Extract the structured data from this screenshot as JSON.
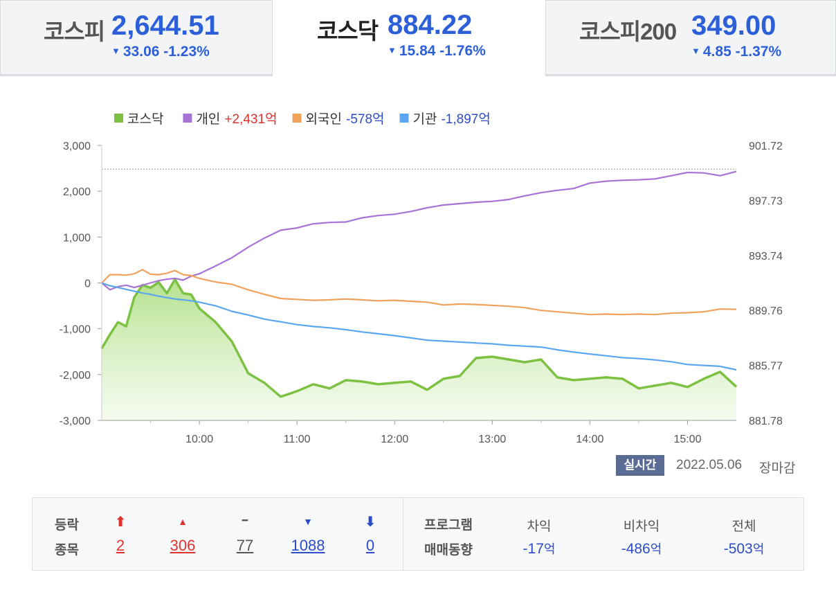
{
  "indices": [
    {
      "name": "코스피",
      "value": "2,644.51",
      "change": "33.06 -1.23%",
      "active": false
    },
    {
      "name": "코스닥",
      "value": "884.22",
      "change": "15.84 -1.76%",
      "active": true
    },
    {
      "name": "코스피200",
      "value": "349.00",
      "change": "4.85 -1.37%",
      "active": false
    }
  ],
  "down_symbol": "▼",
  "legend": [
    {
      "label": "코스닥",
      "value": "",
      "color": "#7cc142",
      "value_color": ""
    },
    {
      "label": "개인",
      "value": "+2,431억",
      "color": "#a773d6",
      "value_color": "#e0322f"
    },
    {
      "label": "외국인",
      "value": "-578억",
      "color": "#f0a15a",
      "value_color": "#2c4cc8"
    },
    {
      "label": "기관",
      "value": "-1,897억",
      "color": "#5aa6ef",
      "value_color": "#2c4cc8"
    }
  ],
  "chart_data": {
    "type": "line",
    "x_labels": [
      "10:00",
      "11:00",
      "12:00",
      "13:00",
      "14:00",
      "15:00"
    ],
    "x_range": [
      "09:00",
      "15:30"
    ],
    "y_left": {
      "ticks": [
        "3,000",
        "2,000",
        "1,000",
        "0",
        "-1,000",
        "-2,000",
        "-3,000"
      ],
      "range": [
        -3000,
        3000
      ]
    },
    "y_right": {
      "ticks": [
        "901.72",
        "897.73",
        "893.74",
        "889.76",
        "885.77",
        "881.78"
      ],
      "range": [
        881.78,
        901.72
      ]
    },
    "reference_line": 900.0,
    "time": [
      "09:00",
      "09:05",
      "09:10",
      "09:15",
      "09:20",
      "09:25",
      "09:30",
      "09:35",
      "09:40",
      "09:45",
      "09:50",
      "09:55",
      "10:00",
      "10:10",
      "10:20",
      "10:30",
      "10:40",
      "10:50",
      "11:00",
      "11:10",
      "11:20",
      "11:30",
      "11:40",
      "11:50",
      "12:00",
      "12:10",
      "12:20",
      "12:30",
      "12:40",
      "12:50",
      "13:00",
      "13:10",
      "13:20",
      "13:30",
      "13:40",
      "13:50",
      "14:00",
      "14:10",
      "14:20",
      "14:30",
      "14:40",
      "14:50",
      "15:00",
      "15:10",
      "15:20",
      "15:30"
    ],
    "series": [
      {
        "name": "코스닥",
        "axis": "right",
        "color": "#7cc142",
        "fill": true,
        "values": [
          887.0,
          888.0,
          888.9,
          888.6,
          890.7,
          891.6,
          891.4,
          891.8,
          891.0,
          892.0,
          891.0,
          890.9,
          889.9,
          888.9,
          887.5,
          885.2,
          884.5,
          883.5,
          883.9,
          884.4,
          884.1,
          884.7,
          884.6,
          884.4,
          884.5,
          884.6,
          884.0,
          884.8,
          885.0,
          886.3,
          886.4,
          886.2,
          886.0,
          886.2,
          884.9,
          884.7,
          884.8,
          884.9,
          884.8,
          884.1,
          884.3,
          884.5,
          884.2,
          884.8,
          885.3,
          884.22
        ]
      },
      {
        "name": "개인",
        "axis": "left",
        "color": "#a773d6",
        "values": [
          0,
          -150,
          -80,
          -50,
          -100,
          -50,
          0,
          50,
          80,
          100,
          60,
          150,
          200,
          370,
          550,
          780,
          980,
          1150,
          1200,
          1290,
          1320,
          1330,
          1420,
          1470,
          1500,
          1560,
          1640,
          1700,
          1730,
          1760,
          1780,
          1820,
          1900,
          1970,
          2020,
          2060,
          2180,
          2220,
          2240,
          2250,
          2270,
          2340,
          2410,
          2400,
          2340,
          2431
        ]
      },
      {
        "name": "외국인",
        "axis": "left",
        "color": "#f0a15a",
        "values": [
          0,
          180,
          180,
          170,
          200,
          290,
          190,
          180,
          210,
          270,
          180,
          160,
          100,
          20,
          -30,
          -150,
          -250,
          -340,
          -360,
          -380,
          -370,
          -350,
          -370,
          -390,
          -380,
          -400,
          -420,
          -480,
          -460,
          -470,
          -490,
          -510,
          -540,
          -600,
          -630,
          -660,
          -690,
          -680,
          -690,
          -680,
          -690,
          -660,
          -650,
          -630,
          -570,
          -578
        ]
      },
      {
        "name": "기관",
        "axis": "left",
        "color": "#5aa6ef",
        "values": [
          0,
          -60,
          -100,
          -140,
          -180,
          -220,
          -250,
          -290,
          -320,
          -350,
          -370,
          -390,
          -420,
          -500,
          -620,
          -700,
          -790,
          -850,
          -910,
          -950,
          -980,
          -1020,
          -1070,
          -1110,
          -1150,
          -1200,
          -1250,
          -1270,
          -1290,
          -1310,
          -1330,
          -1360,
          -1380,
          -1400,
          -1460,
          -1510,
          -1550,
          -1590,
          -1630,
          -1650,
          -1680,
          -1720,
          -1780,
          -1800,
          -1820,
          -1897
        ]
      }
    ]
  },
  "realtime": {
    "badge": "실시간",
    "date": "2022.05.06",
    "status": "장마감"
  },
  "breadth": {
    "label_line1": "등락",
    "label_line2": "종목",
    "items": [
      {
        "icon": "⬆",
        "count": "2",
        "color": "#e0322f",
        "name": "upper-limit"
      },
      {
        "icon": "▲",
        "count": "306",
        "color": "#e0322f",
        "name": "up"
      },
      {
        "icon": "━",
        "count": "77",
        "color": "#555555",
        "name": "unchanged"
      },
      {
        "icon": "▼",
        "count": "1088",
        "color": "#2c4cc8",
        "name": "down"
      },
      {
        "icon": "⬇",
        "count": "0",
        "color": "#2c4cc8",
        "name": "lower-limit"
      }
    ]
  },
  "program": {
    "label_line1": "프로그램",
    "label_line2": "매매동향",
    "columns": [
      {
        "head": "차익",
        "value": "-17",
        "unit": "억"
      },
      {
        "head": "비차익",
        "value": "-486",
        "unit": "억"
      },
      {
        "head": "전체",
        "value": "-503",
        "unit": "억"
      }
    ]
  }
}
